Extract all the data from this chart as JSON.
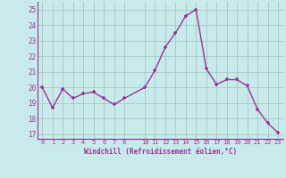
{
  "x": [
    0,
    1,
    2,
    3,
    4,
    5,
    6,
    7,
    8,
    10,
    11,
    12,
    13,
    14,
    15,
    16,
    17,
    18,
    19,
    20,
    21,
    22,
    23
  ],
  "y": [
    20.0,
    18.7,
    19.9,
    19.3,
    19.6,
    19.7,
    19.3,
    18.9,
    19.3,
    20.0,
    21.1,
    22.6,
    23.5,
    24.6,
    25.0,
    21.2,
    20.2,
    20.5,
    20.5,
    20.1,
    18.6,
    17.7,
    17.1
  ],
  "xticks": [
    0,
    1,
    2,
    3,
    4,
    5,
    6,
    7,
    8,
    10,
    11,
    12,
    13,
    14,
    15,
    16,
    17,
    18,
    19,
    20,
    21,
    22,
    23
  ],
  "yticks": [
    17,
    18,
    19,
    20,
    21,
    22,
    23,
    24,
    25
  ],
  "ylim": [
    16.7,
    25.5
  ],
  "xlim": [
    -0.5,
    23.5
  ],
  "xlabel": "Windchill (Refroidissement éolien,°C)",
  "line_color": "#993399",
  "marker": "+",
  "bg_color": "#c8eaea",
  "grid_color": "#aacccc",
  "tick_color": "#993399",
  "label_color": "#993399",
  "font_family": "monospace"
}
